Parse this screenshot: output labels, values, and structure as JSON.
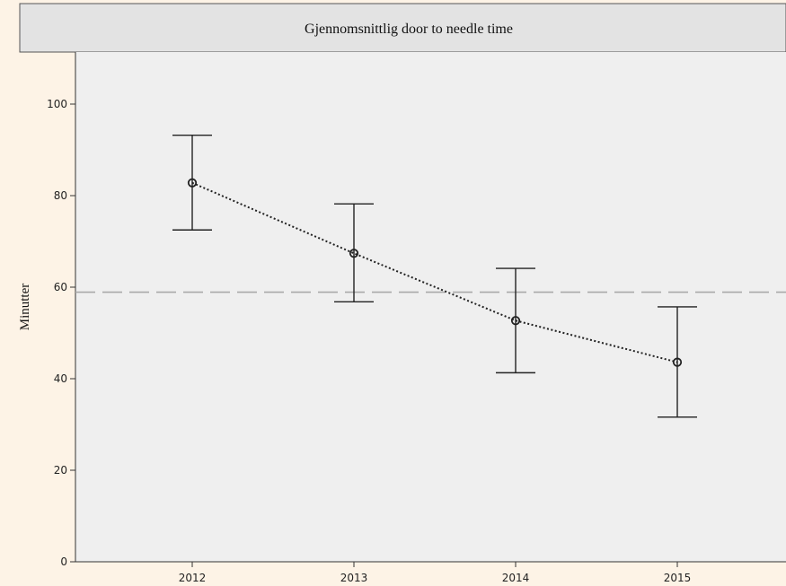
{
  "chart_data": {
    "type": "line",
    "title": "Gjennomsnittlig door to needle time",
    "xlabel": "",
    "ylabel": "Minutter",
    "categories": [
      "2012",
      "2013",
      "2014",
      "2015"
    ],
    "series": [
      {
        "values": [
          82.8,
          67.4,
          52.7,
          43.6
        ],
        "error_low": [
          72.5,
          56.8,
          41.3,
          31.6
        ],
        "error_high": [
          93.2,
          78.2,
          64.1,
          55.7
        ]
      }
    ],
    "reference_line": {
      "y": 58.9,
      "style": "dashed"
    },
    "yticks": [
      0,
      20,
      40,
      60,
      80,
      100
    ],
    "ylim": [
      0,
      110
    ],
    "grid": false,
    "colors": {
      "plot_background": "#efefef",
      "title_band": "#e3e3e3",
      "series_line": "#222222",
      "reference_line": "#a9a9a9",
      "page_background": "#fdf3e6"
    }
  }
}
